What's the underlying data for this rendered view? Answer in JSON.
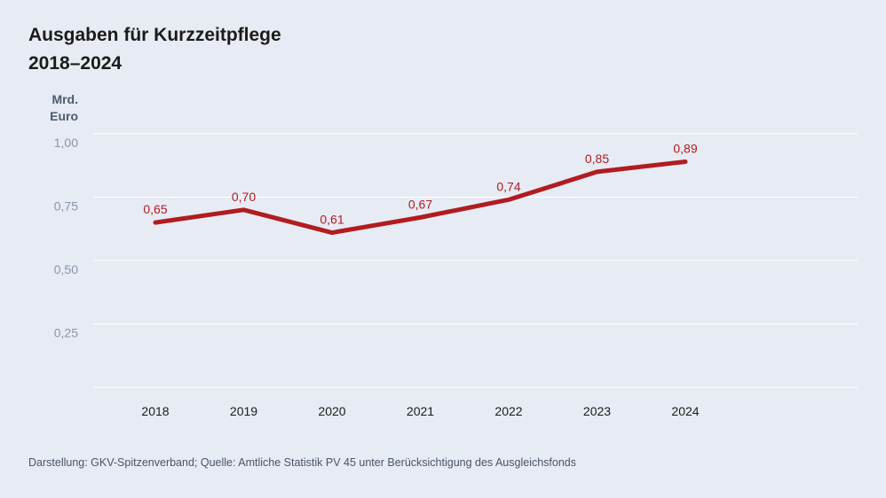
{
  "chart_data": {
    "type": "line",
    "title": "Ausgaben für Kurzzeitpflege\n2018–2024",
    "ylabel": "Mrd.\nEuro",
    "categories": [
      "2018",
      "2019",
      "2020",
      "2021",
      "2022",
      "2023",
      "2024"
    ],
    "series": [
      {
        "values": [
          0.65,
          0.7,
          0.61,
          0.67,
          0.74,
          0.85,
          0.89
        ]
      }
    ],
    "data_labels": [
      "0,65",
      "0,70",
      "0,61",
      "0,67",
      "0,74",
      "0,85",
      "0,89"
    ],
    "yticks": [
      {
        "value": 0.25,
        "label": "0,25"
      },
      {
        "value": 0.5,
        "label": "0,50"
      },
      {
        "value": 0.75,
        "label": "0,75"
      },
      {
        "value": 1.0,
        "label": "1,00"
      }
    ],
    "ylim": [
      0,
      1.0
    ],
    "grid": true,
    "color": "#b01c20"
  },
  "source": "Darstellung: GKV-Spitzenverband; Quelle: Amtliche Statistik PV 45 unter Berücksichtigung des Ausgleichsfonds"
}
